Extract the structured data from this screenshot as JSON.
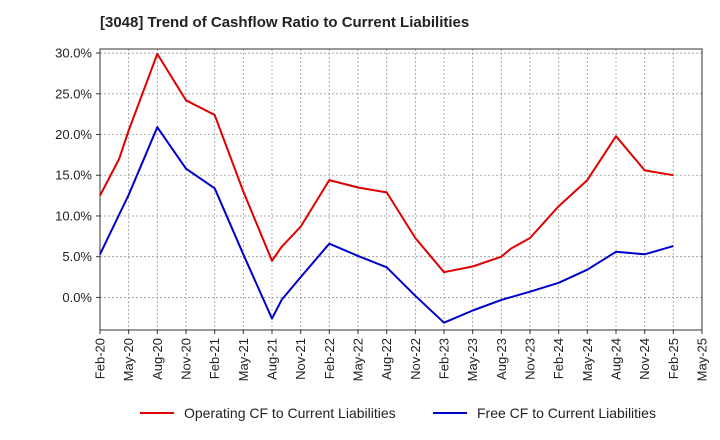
{
  "chart_data": {
    "type": "line",
    "title": "[3048]  Trend of Cashflow Ratio to Current Liabilities",
    "xlabel": "",
    "ylabel": "",
    "x": [
      "Feb-20",
      "May-20",
      "Aug-20",
      "Nov-20",
      "Feb-21",
      "May-21",
      "Aug-21",
      "Nov-21",
      "Feb-22",
      "May-22",
      "Aug-22",
      "Nov-22",
      "Feb-23",
      "May-23",
      "Aug-23",
      "Nov-23",
      "Feb-24",
      "May-24",
      "Aug-24",
      "Nov-24",
      "Feb-25",
      "May-25"
    ],
    "ylim": [
      -4,
      30.5
    ],
    "y_ticks": [
      0,
      5,
      10,
      15,
      20,
      25,
      30
    ],
    "y_tick_labels": [
      "0.0%",
      "5.0%",
      "10.0%",
      "15.0%",
      "20.0%",
      "25.0%",
      "30.0%"
    ],
    "grid": true,
    "legend_position": "bottom",
    "series": [
      {
        "name": "Operating CF to Current Liabilities",
        "color": "#e00000",
        "points": [
          {
            "x": "Feb-20",
            "y": 12.5
          },
          {
            "x": "Apr-20",
            "y": 17.0
          },
          {
            "x": "May-20",
            "y": 20.5
          },
          {
            "x": "Aug-20",
            "y": 29.9
          },
          {
            "x": "Nov-20",
            "y": 24.2
          },
          {
            "x": "Feb-21",
            "y": 22.4
          },
          {
            "x": "May-21",
            "y": 13.0
          },
          {
            "x": "Aug-21",
            "y": 4.5
          },
          {
            "x": "Sep-21",
            "y": 6.2
          },
          {
            "x": "Nov-21",
            "y": 8.7
          },
          {
            "x": "Feb-22",
            "y": 14.4
          },
          {
            "x": "May-22",
            "y": 13.5
          },
          {
            "x": "Aug-22",
            "y": 12.9
          },
          {
            "x": "Nov-22",
            "y": 7.3
          },
          {
            "x": "Feb-23",
            "y": 3.1
          },
          {
            "x": "May-23",
            "y": 3.8
          },
          {
            "x": "Aug-23",
            "y": 5.0
          },
          {
            "x": "Sep-23",
            "y": 6.0
          },
          {
            "x": "Nov-23",
            "y": 7.3
          },
          {
            "x": "Feb-24",
            "y": 11.2
          },
          {
            "x": "May-24",
            "y": 14.4
          },
          {
            "x": "Aug-24",
            "y": 19.8
          },
          {
            "x": "Nov-24",
            "y": 15.6
          },
          {
            "x": "Feb-25",
            "y": 15.0
          }
        ]
      },
      {
        "name": "Free CF to Current Liabilities",
        "color": "#0000cc",
        "points": [
          {
            "x": "Feb-20",
            "y": 5.3
          },
          {
            "x": "May-20",
            "y": 12.6
          },
          {
            "x": "Aug-20",
            "y": 20.9
          },
          {
            "x": "Nov-20",
            "y": 15.8
          },
          {
            "x": "Feb-21",
            "y": 13.4
          },
          {
            "x": "May-21",
            "y": 5.3
          },
          {
            "x": "Aug-21",
            "y": -2.6
          },
          {
            "x": "Sep-21",
            "y": -0.3
          },
          {
            "x": "Nov-21",
            "y": 2.5
          },
          {
            "x": "Feb-22",
            "y": 6.6
          },
          {
            "x": "May-22",
            "y": 5.1
          },
          {
            "x": "Aug-22",
            "y": 3.7
          },
          {
            "x": "Nov-22",
            "y": 0.2
          },
          {
            "x": "Feb-23",
            "y": -3.1
          },
          {
            "x": "May-23",
            "y": -1.6
          },
          {
            "x": "Aug-23",
            "y": -0.3
          },
          {
            "x": "Nov-23",
            "y": 0.7
          },
          {
            "x": "Feb-24",
            "y": 1.8
          },
          {
            "x": "May-24",
            "y": 3.4
          },
          {
            "x": "Aug-24",
            "y": 5.6
          },
          {
            "x": "Nov-24",
            "y": 5.3
          },
          {
            "x": "Feb-25",
            "y": 6.3
          }
        ]
      }
    ]
  }
}
